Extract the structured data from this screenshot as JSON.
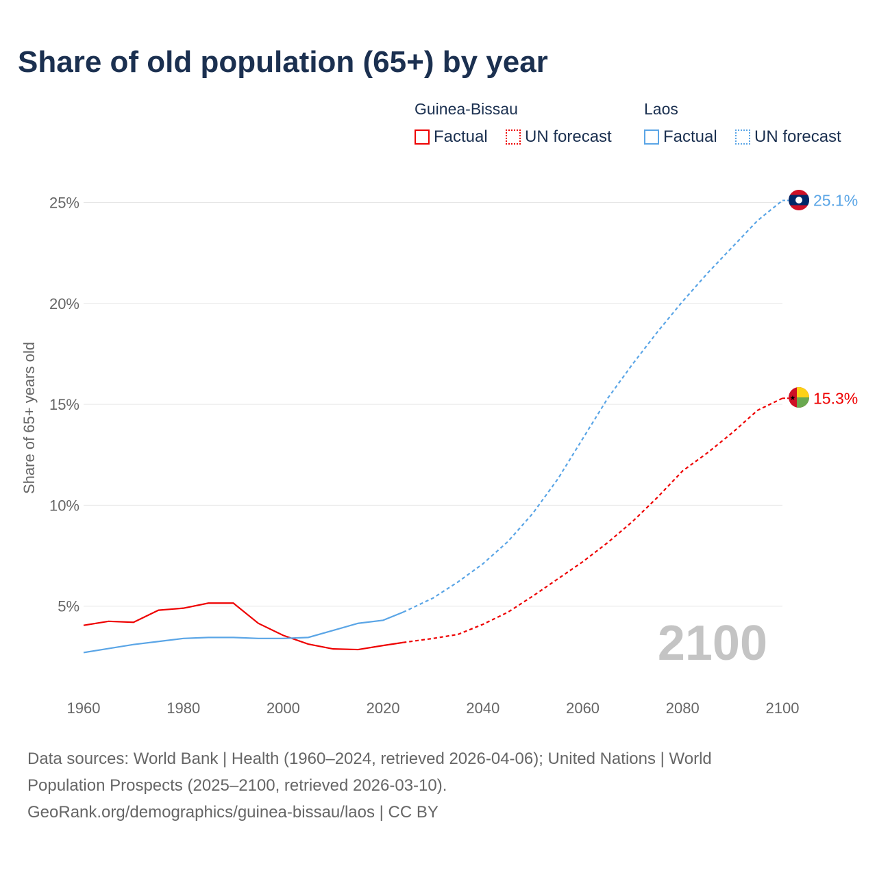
{
  "title": "Share of old population (65+) by year",
  "legend": {
    "groups": [
      {
        "name": "Guinea-Bissau",
        "color": "#ee0000",
        "factual": "Factual",
        "forecast": "UN forecast"
      },
      {
        "name": "Laos",
        "color": "#5aa5e6",
        "factual": "Factual",
        "forecast": "UN forecast"
      }
    ]
  },
  "chart_data": {
    "type": "line",
    "title": "Share of old population (65+) by year",
    "xlabel": "",
    "ylabel": "Share of 65+ years old",
    "xlim": [
      1960,
      2100
    ],
    "ylim": [
      0,
      27
    ],
    "yticks": [
      5,
      10,
      15,
      20,
      25
    ],
    "ytick_labels": [
      "5%",
      "10%",
      "15%",
      "20%",
      "25%"
    ],
    "xticks": [
      1960,
      1980,
      2000,
      2020,
      2040,
      2060,
      2080,
      2100
    ],
    "grid": true,
    "year_watermark": "2100",
    "forecast_start": 2024,
    "x": [
      1960,
      1965,
      1970,
      1975,
      1980,
      1985,
      1990,
      1995,
      2000,
      2005,
      2010,
      2015,
      2020,
      2024,
      2030,
      2035,
      2040,
      2045,
      2050,
      2055,
      2060,
      2065,
      2070,
      2075,
      2080,
      2085,
      2090,
      2095,
      2100
    ],
    "series": [
      {
        "name": "Guinea-Bissau",
        "color": "#ee0000",
        "end_label": "15.3%",
        "values": [
          4.05,
          4.25,
          4.2,
          4.8,
          4.9,
          5.15,
          5.15,
          4.15,
          3.55,
          3.12,
          2.88,
          2.85,
          3.05,
          3.2,
          3.4,
          3.6,
          4.1,
          4.7,
          5.5,
          6.35,
          7.2,
          8.15,
          9.2,
          10.4,
          11.7,
          12.6,
          13.6,
          14.7,
          15.3
        ]
      },
      {
        "name": "Laos",
        "color": "#5aa5e6",
        "end_label": "25.1%",
        "values": [
          2.7,
          2.9,
          3.1,
          3.25,
          3.4,
          3.45,
          3.45,
          3.4,
          3.4,
          3.45,
          3.8,
          4.15,
          4.3,
          4.7,
          5.4,
          6.2,
          7.1,
          8.2,
          9.6,
          11.3,
          13.3,
          15.3,
          17.0,
          18.6,
          20.1,
          21.5,
          22.8,
          24.1,
          25.1
        ]
      }
    ]
  },
  "footer": {
    "line1": "Data sources: World Bank | Health (1960–2024, retrieved 2026-04-06); United Nations | World",
    "line2": "Population Prospects (2025–2100, retrieved 2026-03-10).",
    "line3": "GeoRank.org/demographics/guinea-bissau/laos | CC BY"
  }
}
